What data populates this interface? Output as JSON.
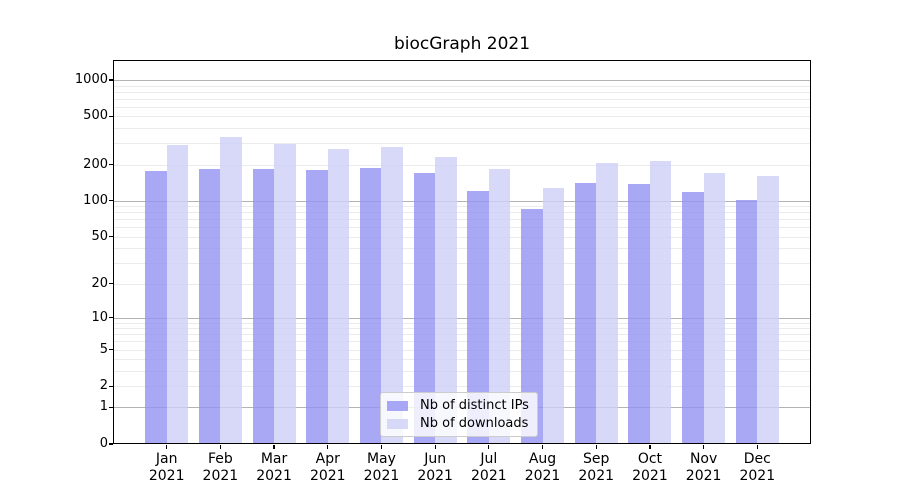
{
  "colors": {
    "ips_bar": "rgba(146,146,242,0.8)",
    "downloads_bar": "rgba(206,206,246,0.8)",
    "major_grid": "#b3b3b3",
    "minor_grid": "#ebebeb",
    "spine": "#000000",
    "text": "#000000",
    "background": "#ffffff",
    "legend_border": "#cccccc"
  },
  "chart_data": {
    "type": "bar",
    "title": "biocGraph 2021",
    "categories": [
      "Jan 2021",
      "Feb 2021",
      "Mar 2021",
      "Apr 2021",
      "May 2021",
      "Jun 2021",
      "Jul 2021",
      "Aug 2021",
      "Sep 2021",
      "Oct 2021",
      "Nov 2021",
      "Dec 2021"
    ],
    "series": [
      {
        "name": "Nb of distinct IPs",
        "color": "rgba(146,146,242,0.8)",
        "values": [
          178,
          184,
          184,
          179,
          186,
          170,
          120,
          86,
          142,
          137,
          118,
          102
        ]
      },
      {
        "name": "Nb of downloads",
        "color": "rgba(206,206,246,0.8)",
        "values": [
          290,
          336,
          296,
          268,
          278,
          233,
          184,
          129,
          205,
          215,
          171,
          161
        ]
      }
    ],
    "xlabel": "",
    "ylabel": "",
    "yscale": "log10(value+1)",
    "yticks": [
      0,
      1,
      2,
      5,
      10,
      20,
      50,
      100,
      200,
      500,
      1000
    ],
    "ylim": [
      0,
      1460
    ],
    "grid": true,
    "legend_position": "lower center"
  }
}
